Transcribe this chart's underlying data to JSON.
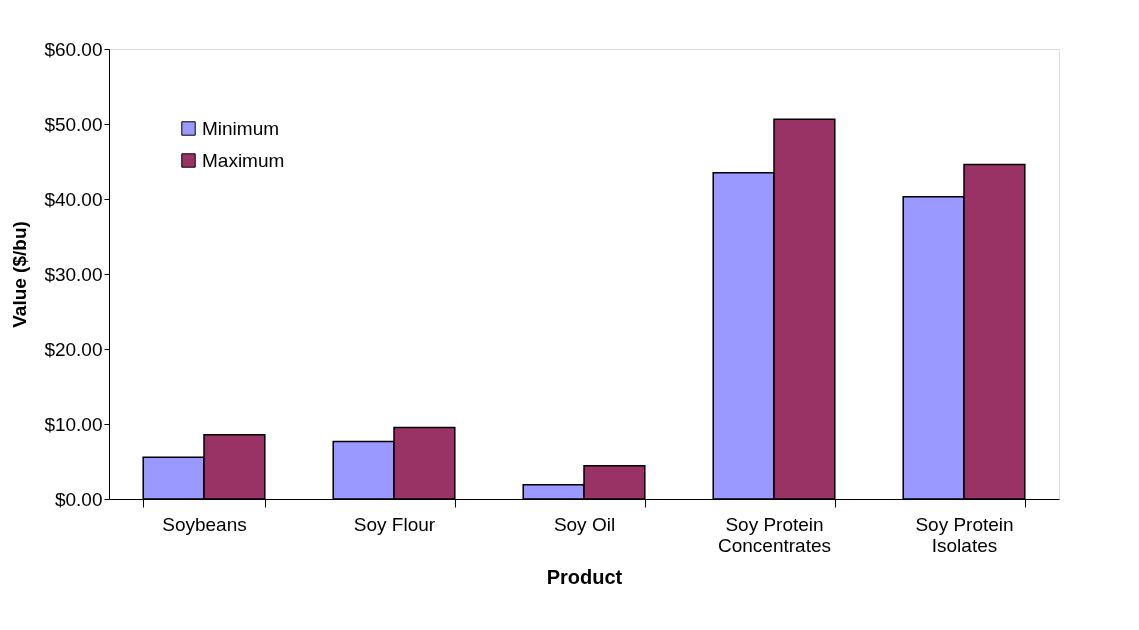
{
  "chart_data": {
    "type": "bar",
    "xlabel": "Product",
    "ylabel": "Value ($/bu)",
    "categories": [
      "Soybeans",
      "Soy Flour",
      "Soy Oil",
      "Soy Protein Concentrates",
      "Soy Protein Isolates"
    ],
    "series": [
      {
        "name": "Minimum",
        "color": "#9999ff",
        "values": [
          5.57,
          7.68,
          1.9,
          43.5,
          40.3
        ]
      },
      {
        "name": "Maximum",
        "color": "#993366",
        "values": [
          8.57,
          9.53,
          4.43,
          50.65,
          44.6
        ]
      }
    ],
    "ylim": [
      0,
      60
    ],
    "yticks": [
      {
        "value": 0,
        "label": "$0.00"
      },
      {
        "value": 10,
        "label": "$10.00"
      },
      {
        "value": 20,
        "label": "$20.00"
      },
      {
        "value": 30,
        "label": "$30.00"
      },
      {
        "value": 40,
        "label": "$40.00"
      },
      {
        "value": 50,
        "label": "$50.00"
      },
      {
        "value": 60,
        "label": "$60.00"
      }
    ],
    "grid": false,
    "legend": "top left"
  }
}
